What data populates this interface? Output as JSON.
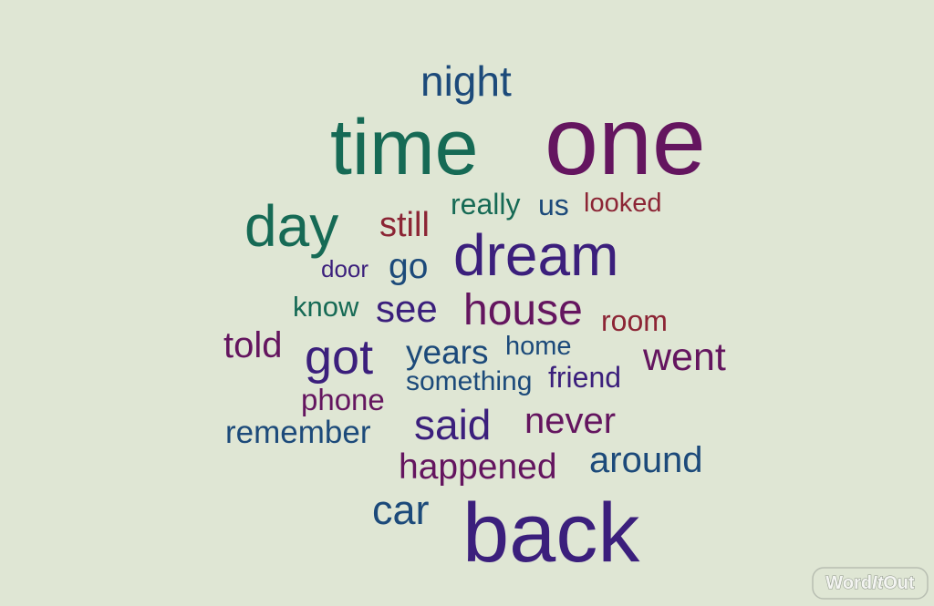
{
  "background_color": "#dfe6d4",
  "palette": {
    "teal": "#166a55",
    "purple": "#64155f",
    "indigo": "#3b1f7c",
    "navy": "#1c4a7a",
    "red": "#8c2535",
    "light_grey": "#f4f5f2"
  },
  "words": [
    {
      "text": "night",
      "color": "navy"
    },
    {
      "text": "time",
      "color": "teal"
    },
    {
      "text": "one",
      "color": "purple"
    },
    {
      "text": "day",
      "color": "teal"
    },
    {
      "text": "still",
      "color": "red"
    },
    {
      "text": "really",
      "color": "teal"
    },
    {
      "text": "us",
      "color": "navy"
    },
    {
      "text": "looked",
      "color": "red"
    },
    {
      "text": "dream",
      "color": "indigo"
    },
    {
      "text": "door",
      "color": "indigo"
    },
    {
      "text": "go",
      "color": "navy"
    },
    {
      "text": "know",
      "color": "teal"
    },
    {
      "text": "see",
      "color": "indigo"
    },
    {
      "text": "house",
      "color": "purple"
    },
    {
      "text": "room",
      "color": "red"
    },
    {
      "text": "told",
      "color": "purple"
    },
    {
      "text": "got",
      "color": "indigo"
    },
    {
      "text": "years",
      "color": "navy"
    },
    {
      "text": "home",
      "color": "navy"
    },
    {
      "text": "went",
      "color": "purple"
    },
    {
      "text": "something",
      "color": "navy"
    },
    {
      "text": "friend",
      "color": "indigo"
    },
    {
      "text": "phone",
      "color": "purple"
    },
    {
      "text": "remember",
      "color": "navy"
    },
    {
      "text": "said",
      "color": "indigo"
    },
    {
      "text": "never",
      "color": "purple"
    },
    {
      "text": "around",
      "color": "navy"
    },
    {
      "text": "happened",
      "color": "purple"
    },
    {
      "text": "car",
      "color": "navy"
    },
    {
      "text": "back",
      "color": "indigo"
    }
  ],
  "logo": {
    "part1": "Word",
    "part2": "It",
    "part3": "Out"
  }
}
